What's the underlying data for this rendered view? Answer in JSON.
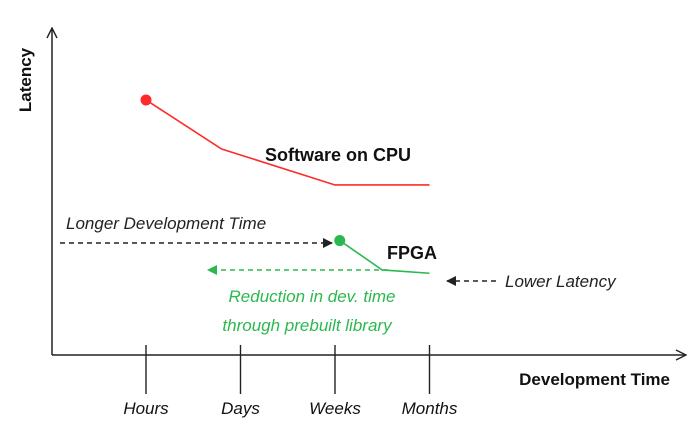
{
  "colors": {
    "cpu": "#ff2a2a",
    "fpga": "#2bb84e",
    "annotation_black": "#222222",
    "annotation_green": "#2bb84e",
    "axis": "#222222"
  },
  "chart_data": {
    "type": "line",
    "xlabel": "Development Time",
    "ylabel": "Latency",
    "categories": [
      "Hours",
      "Days",
      "Weeks",
      "Months"
    ],
    "grid": false,
    "legend": "none",
    "series": [
      {
        "name": "Software on CPU",
        "color": "#ff2a2a",
        "points": [
          [
            0,
            0.78
          ],
          [
            0.8,
            0.63
          ],
          [
            2.0,
            0.52
          ],
          [
            3.0,
            0.52
          ]
        ],
        "marker_at_start": true
      },
      {
        "name": "FPGA",
        "color": "#2bb84e",
        "points": [
          [
            2.05,
            0.35
          ],
          [
            2.5,
            0.26
          ],
          [
            3.0,
            0.25
          ]
        ],
        "marker_at_start": true
      }
    ],
    "annotations": [
      {
        "id": "longer",
        "text": "Longer Development Time",
        "color": "#222222",
        "arrow": "right"
      },
      {
        "id": "lower",
        "text": "Lower Latency",
        "color": "#222222",
        "arrow": "left"
      },
      {
        "id": "reduction",
        "lines": [
          "Reduction in dev. time",
          "through prebuilt library"
        ],
        "color": "#2bb84e",
        "arrow": "left"
      }
    ]
  }
}
